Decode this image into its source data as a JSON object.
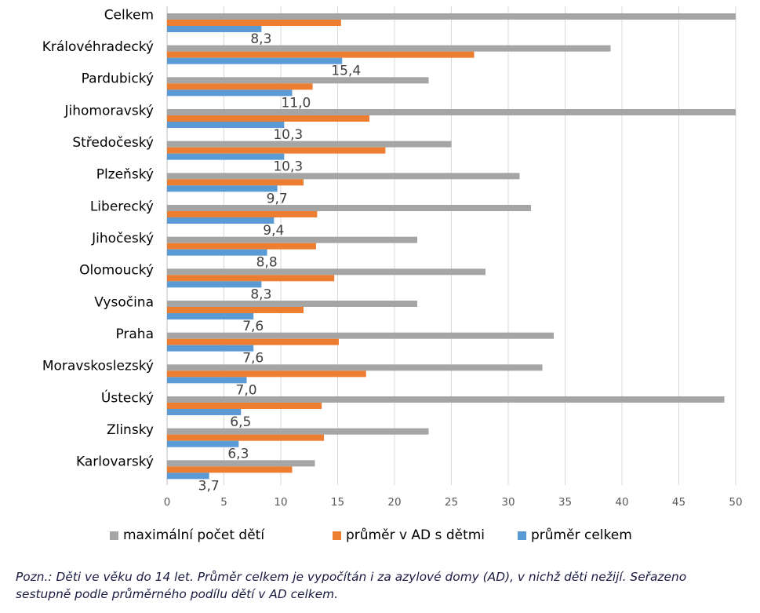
{
  "chart_data": {
    "type": "bar",
    "orientation": "horizontal",
    "categories": [
      "Celkem",
      "Královéhradecký",
      "Pardubický",
      "Jihomoravský",
      "Středočeský",
      "Plzeňský",
      "Liberecký",
      "Jihočeský",
      "Olomoucký",
      "Vysočina",
      "Praha",
      "Moravskoslezský",
      "Ústecký",
      "Zlinsky",
      "Karlovarský"
    ],
    "series": [
      {
        "name": "maximální počet dětí",
        "color": "#a5a5a5",
        "values": [
          50,
          39,
          23,
          50,
          25,
          31,
          32,
          22,
          28,
          22,
          34,
          33,
          49,
          23,
          13
        ]
      },
      {
        "name": "průměr v AD s dětmi",
        "color": "#ed7d31",
        "values": [
          15.3,
          27,
          12.8,
          17.8,
          19.2,
          12,
          13.2,
          13.1,
          14.7,
          12,
          15.1,
          17.5,
          13.6,
          13.8,
          11
        ]
      },
      {
        "name": "průměr celkem",
        "color": "#5b9bd5",
        "values": [
          8.3,
          15.4,
          11.0,
          10.3,
          10.3,
          9.7,
          9.4,
          8.8,
          8.3,
          7.6,
          7.6,
          7.0,
          6.5,
          6.3,
          3.7
        ],
        "data_labels": [
          "8,3",
          "15,4",
          "11,0",
          "10,3",
          "10,3",
          "9,7",
          "9,4",
          "8,8",
          "8,3",
          "7,6",
          "7,6",
          "7,0",
          "6,5",
          "6,3",
          "3,7"
        ]
      }
    ],
    "xlim": [
      0,
      50
    ],
    "xticks": [
      "0",
      "5",
      "10",
      "15",
      "20",
      "25",
      "30",
      "35",
      "40",
      "45",
      "50"
    ],
    "grid": "vertical",
    "legend_position": "bottom",
    "title": "",
    "xlabel": "",
    "ylabel": ""
  },
  "note": "Pozn.: Děti ve věku do 14 let. Průměr celkem je vypočítán i za azylové domy (AD), v nichž děti nežijí. Seřazeno sestupně podle průměrného podílu dětí v AD celkem."
}
